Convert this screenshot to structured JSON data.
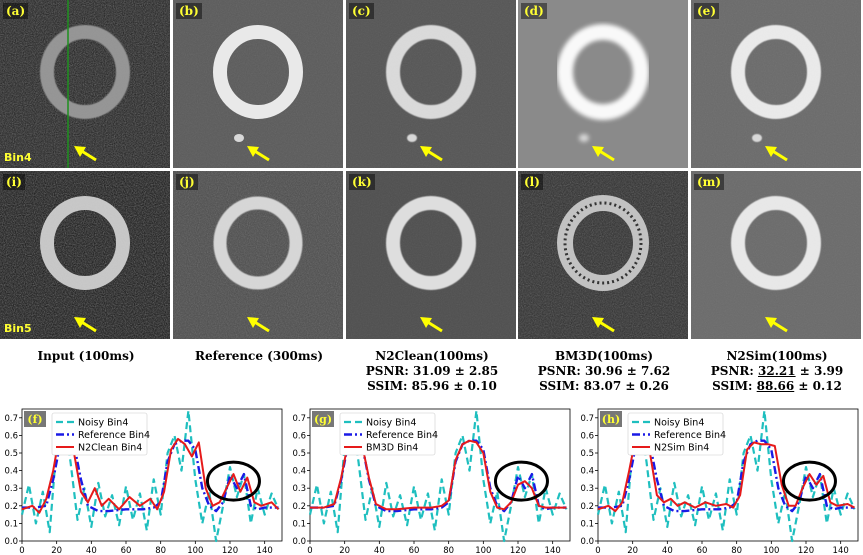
{
  "colors": {
    "label_yellow": "#ffff33",
    "noisy": "#1fbfbf",
    "reference": "#1a1ae6",
    "method": "#e61a1a",
    "arrow": "#ffff00"
  },
  "tiles": {
    "row1": [
      {
        "id": "(a)",
        "row_label": "Bin4"
      },
      {
        "id": "(b)"
      },
      {
        "id": "(c)"
      },
      {
        "id": "(d)"
      },
      {
        "id": "(e)"
      }
    ],
    "row2": [
      {
        "id": "(i)",
        "row_label": "Bin5"
      },
      {
        "id": "(j)"
      },
      {
        "id": "(k)"
      },
      {
        "id": "(l)"
      },
      {
        "id": "(m)"
      }
    ]
  },
  "captions": [
    {
      "title": "Input (100ms)"
    },
    {
      "title": "Reference (300ms)"
    },
    {
      "title": "N2Clean(100ms)",
      "psnr_prefix": "PSNR: ",
      "psnr_value": "31.09",
      "psnr_pm": " ± 2.85",
      "ssim_prefix": "SSIM: ",
      "ssim_value": "85.96",
      "ssim_pm": " ± 0.10"
    },
    {
      "title": "BM3D(100ms)",
      "psnr_prefix": "PSNR: ",
      "psnr_value": "30.96",
      "psnr_pm": " ± 7.62",
      "ssim_prefix": "SSIM: ",
      "ssim_value": "83.07",
      "ssim_pm": " ± 0.26"
    },
    {
      "title": "N2Sim(100ms)",
      "psnr_prefix": "PSNR: ",
      "psnr_value": "32.21",
      "psnr_pm": " ± 3.99",
      "ssim_prefix": "SSIM: ",
      "ssim_value": "88.66",
      "ssim_pm": " ± 0.12"
    }
  ],
  "chart_data": [
    {
      "type": "line",
      "panel": "(f)",
      "xlim": [
        0,
        150
      ],
      "ylim": [
        0.0,
        0.75
      ],
      "xticks": [
        0,
        20,
        40,
        60,
        80,
        100,
        120,
        140
      ],
      "yticks": [
        0.0,
        0.1,
        0.2,
        0.3,
        0.4,
        0.5,
        0.6,
        0.7
      ],
      "legend": [
        "Noisy Bin4",
        "Reference Bin4",
        "N2Clean Bin4"
      ],
      "circle_center": [
        122,
        0.34
      ],
      "series": [
        {
          "name": "Noisy Bin4",
          "style": "dashed",
          "x": [
            0,
            4,
            8,
            12,
            16,
            20,
            24,
            28,
            32,
            36,
            40,
            44,
            48,
            52,
            56,
            60,
            64,
            68,
            72,
            76,
            80,
            84,
            88,
            92,
            96,
            100,
            104,
            108,
            112,
            116,
            120,
            124,
            128,
            132,
            136,
            140,
            144,
            148
          ],
          "y": [
            0.15,
            0.32,
            0.1,
            0.28,
            0.05,
            0.55,
            0.72,
            0.45,
            0.12,
            0.3,
            0.08,
            0.33,
            0.14,
            0.26,
            0.09,
            0.31,
            0.12,
            0.27,
            0.06,
            0.35,
            0.15,
            0.5,
            0.6,
            0.4,
            0.74,
            0.35,
            0.1,
            0.28,
            0.0,
            0.2,
            0.42,
            0.25,
            0.38,
            0.1,
            0.3,
            0.15,
            0.27,
            0.18
          ]
        },
        {
          "name": "Reference Bin4",
          "style": "dashdot",
          "x": [
            0,
            8,
            14,
            18,
            22,
            26,
            30,
            34,
            38,
            44,
            50,
            60,
            70,
            76,
            80,
            84,
            88,
            92,
            96,
            100,
            104,
            108,
            112,
            116,
            120,
            124,
            128,
            132,
            136,
            140,
            148
          ],
          "y": [
            0.19,
            0.19,
            0.2,
            0.35,
            0.55,
            0.6,
            0.55,
            0.35,
            0.2,
            0.17,
            0.17,
            0.18,
            0.18,
            0.19,
            0.22,
            0.45,
            0.55,
            0.57,
            0.57,
            0.52,
            0.3,
            0.2,
            0.17,
            0.22,
            0.37,
            0.3,
            0.38,
            0.2,
            0.18,
            0.19,
            0.19
          ]
        },
        {
          "name": "N2Clean Bin4",
          "style": "solid",
          "x": [
            0,
            6,
            10,
            14,
            18,
            22,
            26,
            30,
            34,
            38,
            42,
            46,
            50,
            56,
            62,
            68,
            74,
            78,
            82,
            86,
            90,
            94,
            98,
            102,
            106,
            110,
            114,
            118,
            122,
            126,
            130,
            134,
            138,
            144,
            148
          ],
          "y": [
            0.18,
            0.2,
            0.16,
            0.24,
            0.4,
            0.62,
            0.68,
            0.5,
            0.28,
            0.22,
            0.3,
            0.2,
            0.24,
            0.18,
            0.25,
            0.2,
            0.24,
            0.18,
            0.28,
            0.52,
            0.58,
            0.55,
            0.48,
            0.56,
            0.3,
            0.2,
            0.22,
            0.3,
            0.38,
            0.28,
            0.36,
            0.22,
            0.2,
            0.22,
            0.18
          ]
        }
      ]
    },
    {
      "type": "line",
      "panel": "(g)",
      "xlim": [
        0,
        150
      ],
      "ylim": [
        0.0,
        0.75
      ],
      "xticks": [
        0,
        20,
        40,
        60,
        80,
        100,
        120,
        140
      ],
      "yticks": [
        0.0,
        0.1,
        0.2,
        0.3,
        0.4,
        0.5,
        0.6,
        0.7
      ],
      "legend": [
        "Noisy Bin4",
        "Reference Bin4",
        "BM3D Bin4"
      ],
      "circle_center": [
        122,
        0.34
      ],
      "series": [
        {
          "name": "Noisy Bin4",
          "style": "dashed",
          "x": [
            0,
            4,
            8,
            12,
            16,
            20,
            24,
            28,
            32,
            36,
            40,
            44,
            48,
            52,
            56,
            60,
            64,
            68,
            72,
            76,
            80,
            84,
            88,
            92,
            96,
            100,
            104,
            108,
            112,
            116,
            120,
            124,
            128,
            132,
            136,
            140,
            144,
            148
          ],
          "y": [
            0.15,
            0.32,
            0.1,
            0.28,
            0.05,
            0.55,
            0.72,
            0.45,
            0.12,
            0.3,
            0.08,
            0.33,
            0.14,
            0.26,
            0.09,
            0.31,
            0.12,
            0.27,
            0.06,
            0.35,
            0.15,
            0.5,
            0.6,
            0.4,
            0.74,
            0.35,
            0.1,
            0.28,
            0.0,
            0.2,
            0.42,
            0.25,
            0.38,
            0.1,
            0.3,
            0.15,
            0.27,
            0.18
          ]
        },
        {
          "name": "Reference Bin4",
          "style": "dashdot",
          "x": [
            0,
            8,
            14,
            18,
            22,
            26,
            30,
            34,
            38,
            44,
            50,
            60,
            70,
            76,
            80,
            84,
            88,
            92,
            96,
            100,
            104,
            108,
            112,
            116,
            120,
            124,
            128,
            132,
            136,
            140,
            148
          ],
          "y": [
            0.19,
            0.19,
            0.2,
            0.35,
            0.55,
            0.6,
            0.55,
            0.35,
            0.2,
            0.17,
            0.17,
            0.18,
            0.18,
            0.19,
            0.22,
            0.45,
            0.55,
            0.57,
            0.57,
            0.52,
            0.3,
            0.2,
            0.17,
            0.22,
            0.37,
            0.3,
            0.38,
            0.2,
            0.18,
            0.19,
            0.19
          ]
        },
        {
          "name": "BM3D Bin4",
          "style": "solid",
          "x": [
            0,
            8,
            14,
            18,
            22,
            26,
            30,
            34,
            38,
            44,
            50,
            60,
            70,
            76,
            80,
            84,
            88,
            92,
            96,
            100,
            104,
            108,
            112,
            116,
            120,
            124,
            128,
            132,
            136,
            140,
            148
          ],
          "y": [
            0.19,
            0.19,
            0.21,
            0.36,
            0.56,
            0.61,
            0.55,
            0.36,
            0.21,
            0.18,
            0.18,
            0.19,
            0.19,
            0.2,
            0.23,
            0.46,
            0.55,
            0.57,
            0.56,
            0.5,
            0.28,
            0.19,
            0.18,
            0.22,
            0.32,
            0.34,
            0.3,
            0.2,
            0.19,
            0.19,
            0.19
          ]
        }
      ]
    },
    {
      "type": "line",
      "panel": "(h)",
      "xlim": [
        0,
        150
      ],
      "ylim": [
        0.0,
        0.75
      ],
      "xticks": [
        0,
        20,
        40,
        60,
        80,
        100,
        120,
        140
      ],
      "yticks": [
        0.0,
        0.1,
        0.2,
        0.3,
        0.4,
        0.5,
        0.6,
        0.7
      ],
      "legend": [
        "Noisy Bin4",
        "Reference Bin4",
        "N2Sim Bin4"
      ],
      "circle_center": [
        122,
        0.34
      ],
      "series": [
        {
          "name": "Noisy Bin4",
          "style": "dashed",
          "x": [
            0,
            4,
            8,
            12,
            16,
            20,
            24,
            28,
            32,
            36,
            40,
            44,
            48,
            52,
            56,
            60,
            64,
            68,
            72,
            76,
            80,
            84,
            88,
            92,
            96,
            100,
            104,
            108,
            112,
            116,
            120,
            124,
            128,
            132,
            136,
            140,
            144,
            148
          ],
          "y": [
            0.15,
            0.32,
            0.1,
            0.28,
            0.05,
            0.55,
            0.72,
            0.45,
            0.12,
            0.3,
            0.08,
            0.33,
            0.14,
            0.26,
            0.09,
            0.31,
            0.12,
            0.27,
            0.06,
            0.35,
            0.15,
            0.5,
            0.6,
            0.4,
            0.74,
            0.35,
            0.1,
            0.28,
            0.0,
            0.2,
            0.42,
            0.25,
            0.38,
            0.1,
            0.3,
            0.15,
            0.27,
            0.18
          ]
        },
        {
          "name": "Reference Bin4",
          "style": "dashdot",
          "x": [
            0,
            8,
            14,
            18,
            22,
            26,
            30,
            34,
            38,
            44,
            50,
            60,
            70,
            76,
            80,
            84,
            88,
            92,
            96,
            100,
            104,
            108,
            112,
            116,
            120,
            124,
            128,
            132,
            136,
            140,
            148
          ],
          "y": [
            0.19,
            0.19,
            0.2,
            0.35,
            0.55,
            0.6,
            0.55,
            0.35,
            0.2,
            0.17,
            0.17,
            0.18,
            0.18,
            0.19,
            0.22,
            0.45,
            0.55,
            0.57,
            0.57,
            0.52,
            0.3,
            0.2,
            0.17,
            0.22,
            0.37,
            0.3,
            0.38,
            0.2,
            0.18,
            0.19,
            0.19
          ]
        },
        {
          "name": "N2Sim Bin4",
          "style": "solid",
          "x": [
            0,
            6,
            10,
            14,
            18,
            22,
            26,
            30,
            34,
            38,
            42,
            46,
            50,
            56,
            62,
            68,
            74,
            78,
            82,
            86,
            90,
            94,
            98,
            102,
            106,
            110,
            114,
            118,
            122,
            126,
            130,
            134,
            138,
            144,
            148
          ],
          "y": [
            0.18,
            0.2,
            0.17,
            0.22,
            0.4,
            0.6,
            0.64,
            0.5,
            0.26,
            0.22,
            0.24,
            0.2,
            0.22,
            0.19,
            0.22,
            0.2,
            0.21,
            0.19,
            0.26,
            0.52,
            0.56,
            0.55,
            0.55,
            0.54,
            0.32,
            0.2,
            0.2,
            0.3,
            0.38,
            0.32,
            0.37,
            0.22,
            0.2,
            0.21,
            0.19
          ]
        }
      ]
    }
  ]
}
